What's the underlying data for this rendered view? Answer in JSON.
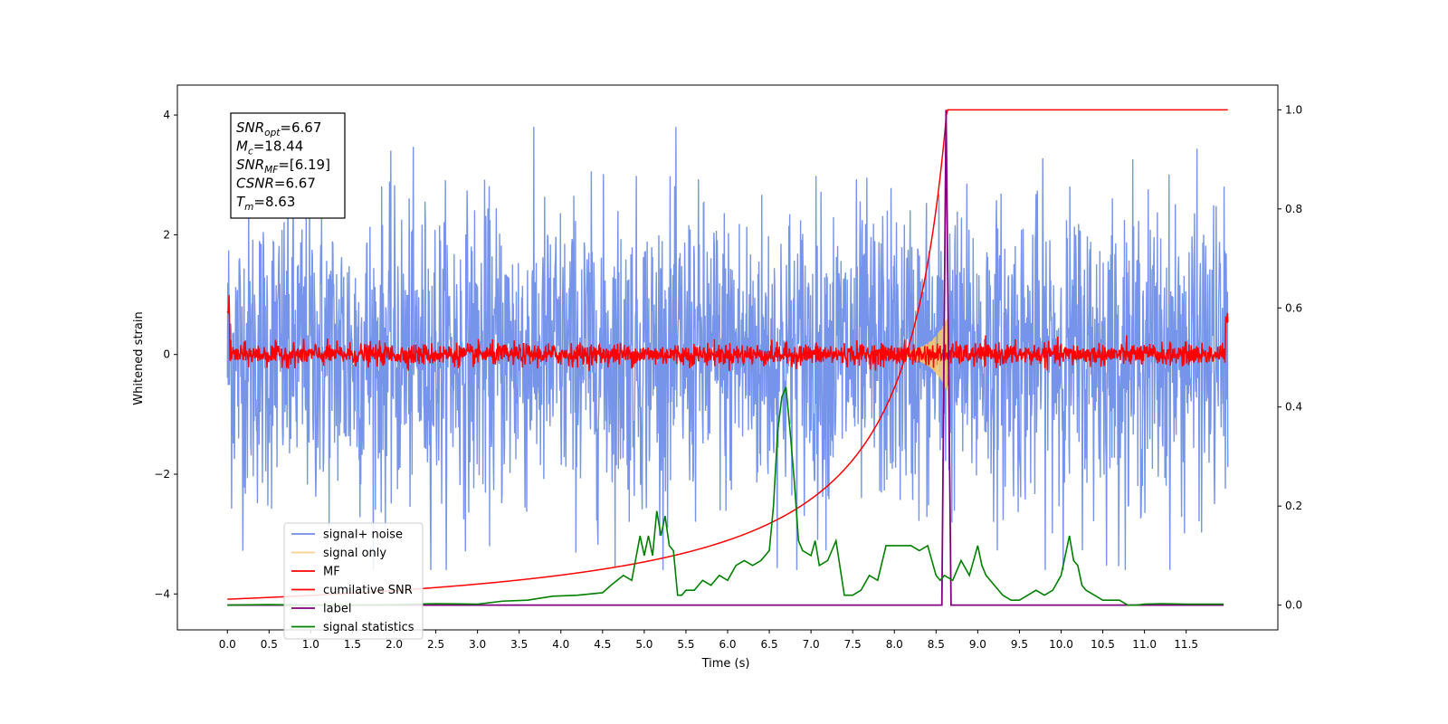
{
  "chart_data": {
    "type": "line",
    "xlabel": "Time (s)",
    "ylabel_left": "Whitened strain",
    "xlim": [
      -0.6,
      12.6
    ],
    "ylim_left": [
      -4.6,
      4.5
    ],
    "ylim_right": [
      -0.05,
      1.05
    ],
    "x_ticks": [
      "0.0",
      "0.5",
      "1.0",
      "1.5",
      "2.0",
      "2.5",
      "3.0",
      "3.5",
      "4.0",
      "4.5",
      "5.0",
      "5.5",
      "6.0",
      "6.5",
      "7.0",
      "7.5",
      "8.0",
      "8.5",
      "9.0",
      "9.5",
      "10.0",
      "10.5",
      "11.0",
      "11.5"
    ],
    "y_ticks_left": [
      "4",
      "2",
      "0",
      "−2",
      "−4"
    ],
    "y_ticks_right": [
      "1.0",
      "0.8",
      "0.6",
      "0.4",
      "0.2",
      "0.0"
    ],
    "duration": 12.0,
    "merger_time": 8.63,
    "info_box": [
      {
        "base": "SNR",
        "sub": "opt",
        "value": "=6.67"
      },
      {
        "base": "M",
        "sub": "c",
        "value": "=18.44"
      },
      {
        "base": "SNR",
        "sub": "MF",
        "value": "=[6.19]"
      },
      {
        "base": "CSNR",
        "sub": "",
        "value": "=6.67"
      },
      {
        "base": "T",
        "sub": "m",
        "value": "=8.63"
      }
    ],
    "series": [
      {
        "name": "signal+ noise",
        "axis": "left",
        "color": "#6f8ee8",
        "description": "whitened noise, amplitude ~ ±3.5"
      },
      {
        "name": "signal only",
        "axis": "left",
        "color": "#f5c66e",
        "description": "chirp peaking at merger_time, amplitude ~0.6"
      },
      {
        "name": "MF",
        "axis": "left",
        "color": "#ff0000",
        "description": "matched filter output, ~ ±0.25"
      },
      {
        "name": "cumilative SNR",
        "axis": "right",
        "color": "#ff0000",
        "description": "rises from 0.01 to 1.0 at merger_time, flat 1.0 after"
      },
      {
        "name": "label",
        "axis": "right",
        "color": "#800080",
        "x": [
          0,
          8.57,
          8.62,
          8.68,
          11.95
        ],
        "y": [
          0,
          0,
          1.0,
          0,
          0
        ]
      },
      {
        "name": "signal statistics",
        "axis": "right",
        "color": "#008000",
        "x": [
          0,
          0.5,
          1.0,
          1.5,
          2.0,
          2.5,
          3.0,
          3.3,
          3.6,
          3.9,
          4.2,
          4.5,
          4.6,
          4.75,
          4.85,
          4.95,
          5.0,
          5.05,
          5.1,
          5.15,
          5.2,
          5.25,
          5.3,
          5.35,
          5.4,
          5.45,
          5.5,
          5.6,
          5.7,
          5.8,
          5.9,
          6.0,
          6.1,
          6.2,
          6.3,
          6.4,
          6.5,
          6.55,
          6.6,
          6.65,
          6.7,
          6.75,
          6.8,
          6.85,
          6.9,
          7.0,
          7.05,
          7.1,
          7.2,
          7.3,
          7.4,
          7.5,
          7.6,
          7.7,
          7.8,
          7.9,
          8.0,
          8.1,
          8.2,
          8.3,
          8.4,
          8.5,
          8.55,
          8.6,
          8.7,
          8.8,
          8.9,
          9.0,
          9.05,
          9.1,
          9.2,
          9.3,
          9.4,
          9.5,
          9.6,
          9.7,
          9.8,
          9.9,
          10.0,
          10.1,
          10.15,
          10.2,
          10.25,
          10.3,
          10.4,
          10.5,
          10.6,
          10.7,
          10.8,
          10.9,
          11.0,
          11.2,
          11.5,
          11.95
        ],
        "y": [
          0,
          0.001,
          0.0,
          0.0,
          0.001,
          0.003,
          0.002,
          0.008,
          0.01,
          0.018,
          0.02,
          0.025,
          0.04,
          0.06,
          0.05,
          0.14,
          0.1,
          0.14,
          0.1,
          0.19,
          0.14,
          0.18,
          0.12,
          0.11,
          0.02,
          0.02,
          0.03,
          0.03,
          0.05,
          0.04,
          0.06,
          0.05,
          0.08,
          0.09,
          0.08,
          0.09,
          0.11,
          0.2,
          0.35,
          0.42,
          0.44,
          0.35,
          0.25,
          0.13,
          0.11,
          0.1,
          0.13,
          0.08,
          0.09,
          0.13,
          0.02,
          0.02,
          0.03,
          0.06,
          0.05,
          0.12,
          0.12,
          0.12,
          0.12,
          0.11,
          0.12,
          0.06,
          0.05,
          0.06,
          0.05,
          0.09,
          0.06,
          0.12,
          0.08,
          0.06,
          0.04,
          0.02,
          0.01,
          0.01,
          0.02,
          0.03,
          0.02,
          0.03,
          0.06,
          0.14,
          0.09,
          0.08,
          0.04,
          0.03,
          0.02,
          0.01,
          0.01,
          0.01,
          0.0,
          0.0,
          0.002,
          0.003,
          0.002,
          0.002
        ]
      }
    ],
    "legend_position": "lower-left"
  }
}
